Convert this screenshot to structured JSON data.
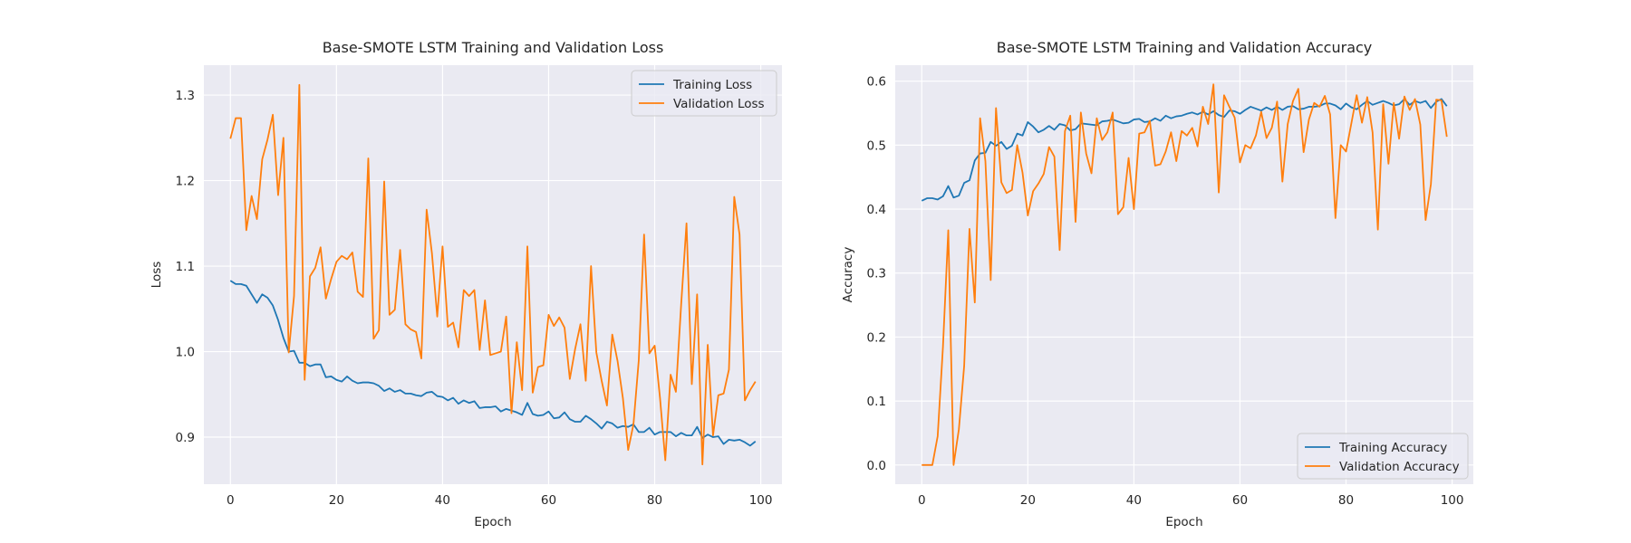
{
  "chart_data": [
    {
      "type": "line",
      "title": "Base-SMOTE LSTM Training and Validation Loss",
      "xlabel": "Epoch",
      "ylabel": "Loss",
      "xlim": [
        -5,
        104
      ],
      "ylim": [
        0.845,
        1.335
      ],
      "xticks": [
        0,
        20,
        40,
        60,
        80,
        100
      ],
      "yticks": [
        0.9,
        1.0,
        1.1,
        1.2,
        1.3
      ],
      "grid": true,
      "legend_position": "top-right",
      "series": [
        {
          "name": "Training Loss",
          "color": "#1f77b4",
          "values": [
            1.083,
            1.079,
            1.079,
            1.077,
            1.067,
            1.057,
            1.067,
            1.063,
            1.054,
            1.037,
            1.016,
            1.0,
            1.001,
            0.987,
            0.987,
            0.983,
            0.985,
            0.985,
            0.97,
            0.971,
            0.967,
            0.965,
            0.971,
            0.966,
            0.963,
            0.964,
            0.964,
            0.963,
            0.96,
            0.954,
            0.957,
            0.953,
            0.955,
            0.951,
            0.951,
            0.949,
            0.948,
            0.952,
            0.953,
            0.948,
            0.947,
            0.943,
            0.946,
            0.939,
            0.943,
            0.94,
            0.942,
            0.934,
            0.935,
            0.935,
            0.936,
            0.93,
            0.933,
            0.931,
            0.929,
            0.926,
            0.94,
            0.927,
            0.925,
            0.926,
            0.93,
            0.922,
            0.923,
            0.929,
            0.921,
            0.918,
            0.918,
            0.925,
            0.921,
            0.916,
            0.91,
            0.918,
            0.916,
            0.911,
            0.913,
            0.912,
            0.915,
            0.906,
            0.906,
            0.911,
            0.903,
            0.906,
            0.906,
            0.906,
            0.901,
            0.905,
            0.902,
            0.902,
            0.912,
            0.899,
            0.903,
            0.9,
            0.901,
            0.892,
            0.897,
            0.896,
            0.897,
            0.894,
            0.89,
            0.895
          ]
        },
        {
          "name": "Validation Loss",
          "color": "#ff7f0e",
          "values": [
            1.249,
            1.273,
            1.273,
            1.142,
            1.182,
            1.155,
            1.225,
            1.248,
            1.277,
            1.183,
            1.25,
            0.999,
            1.065,
            1.312,
            0.967,
            1.088,
            1.098,
            1.122,
            1.062,
            1.085,
            1.105,
            1.112,
            1.108,
            1.116,
            1.07,
            1.064,
            1.226,
            1.015,
            1.025,
            1.199,
            1.043,
            1.049,
            1.119,
            1.032,
            1.026,
            1.023,
            0.992,
            1.166,
            1.115,
            1.041,
            1.123,
            1.029,
            1.034,
            1.005,
            1.072,
            1.065,
            1.072,
            1.002,
            1.06,
            0.996,
            0.998,
            1.0,
            1.041,
            0.928,
            1.011,
            0.955,
            1.123,
            0.952,
            0.982,
            0.984,
            1.043,
            1.03,
            1.04,
            1.028,
            0.968,
            1.003,
            1.032,
            0.966,
            1.1,
            0.999,
            0.966,
            0.937,
            1.02,
            0.989,
            0.946,
            0.885,
            0.915,
            0.99,
            1.137,
            0.998,
            1.007,
            0.946,
            0.873,
            0.973,
            0.953,
            1.056,
            1.15,
            0.962,
            1.067,
            0.868,
            1.008,
            0.902,
            0.949,
            0.951,
            0.979,
            1.181,
            1.137,
            0.943,
            0.955,
            0.965
          ]
        }
      ]
    },
    {
      "type": "line",
      "title": "Base-SMOTE LSTM Training and Validation Accuracy",
      "xlabel": "Epoch",
      "ylabel": "Accuracy",
      "xlim": [
        -5,
        104
      ],
      "ylim": [
        -0.03,
        0.625
      ],
      "xticks": [
        0,
        20,
        40,
        60,
        80,
        100
      ],
      "yticks": [
        0.0,
        0.1,
        0.2,
        0.3,
        0.4,
        0.5,
        0.6
      ],
      "grid": true,
      "legend_position": "bottom-right",
      "series": [
        {
          "name": "Training Accuracy",
          "color": "#1f77b4",
          "values": [
            0.413,
            0.417,
            0.417,
            0.415,
            0.42,
            0.436,
            0.418,
            0.421,
            0.441,
            0.445,
            0.476,
            0.487,
            0.488,
            0.505,
            0.499,
            0.505,
            0.494,
            0.499,
            0.518,
            0.515,
            0.536,
            0.529,
            0.52,
            0.524,
            0.53,
            0.524,
            0.533,
            0.531,
            0.523,
            0.525,
            0.534,
            0.533,
            0.532,
            0.531,
            0.537,
            0.538,
            0.54,
            0.537,
            0.534,
            0.535,
            0.54,
            0.541,
            0.536,
            0.537,
            0.542,
            0.538,
            0.546,
            0.542,
            0.545,
            0.546,
            0.549,
            0.551,
            0.548,
            0.552,
            0.548,
            0.553,
            0.547,
            0.544,
            0.554,
            0.553,
            0.549,
            0.555,
            0.56,
            0.557,
            0.554,
            0.559,
            0.555,
            0.56,
            0.555,
            0.56,
            0.561,
            0.556,
            0.557,
            0.56,
            0.56,
            0.561,
            0.565,
            0.565,
            0.562,
            0.556,
            0.565,
            0.559,
            0.556,
            0.563,
            0.569,
            0.563,
            0.566,
            0.569,
            0.566,
            0.562,
            0.564,
            0.572,
            0.563,
            0.569,
            0.566,
            0.569,
            0.558,
            0.568,
            0.572,
            0.561
          ]
        },
        {
          "name": "Validation Accuracy",
          "color": "#ff7f0e",
          "values": [
            0.0,
            0.0,
            0.0,
            0.045,
            0.185,
            0.367,
            0.0,
            0.056,
            0.155,
            0.369,
            0.254,
            0.542,
            0.475,
            0.289,
            0.558,
            0.442,
            0.425,
            0.43,
            0.5,
            0.457,
            0.39,
            0.428,
            0.44,
            0.455,
            0.497,
            0.482,
            0.336,
            0.522,
            0.546,
            0.38,
            0.551,
            0.487,
            0.456,
            0.542,
            0.508,
            0.52,
            0.551,
            0.392,
            0.403,
            0.48,
            0.4,
            0.518,
            0.52,
            0.538,
            0.468,
            0.47,
            0.49,
            0.52,
            0.475,
            0.522,
            0.515,
            0.527,
            0.498,
            0.56,
            0.533,
            0.595,
            0.426,
            0.578,
            0.56,
            0.543,
            0.473,
            0.5,
            0.495,
            0.515,
            0.552,
            0.511,
            0.527,
            0.568,
            0.443,
            0.533,
            0.569,
            0.588,
            0.489,
            0.54,
            0.566,
            0.56,
            0.577,
            0.548,
            0.386,
            0.5,
            0.49,
            0.534,
            0.578,
            0.535,
            0.575,
            0.52,
            0.368,
            0.564,
            0.471,
            0.566,
            0.51,
            0.576,
            0.555,
            0.572,
            0.532,
            0.383,
            0.439,
            0.571,
            0.57,
            0.513
          ]
        }
      ]
    }
  ]
}
